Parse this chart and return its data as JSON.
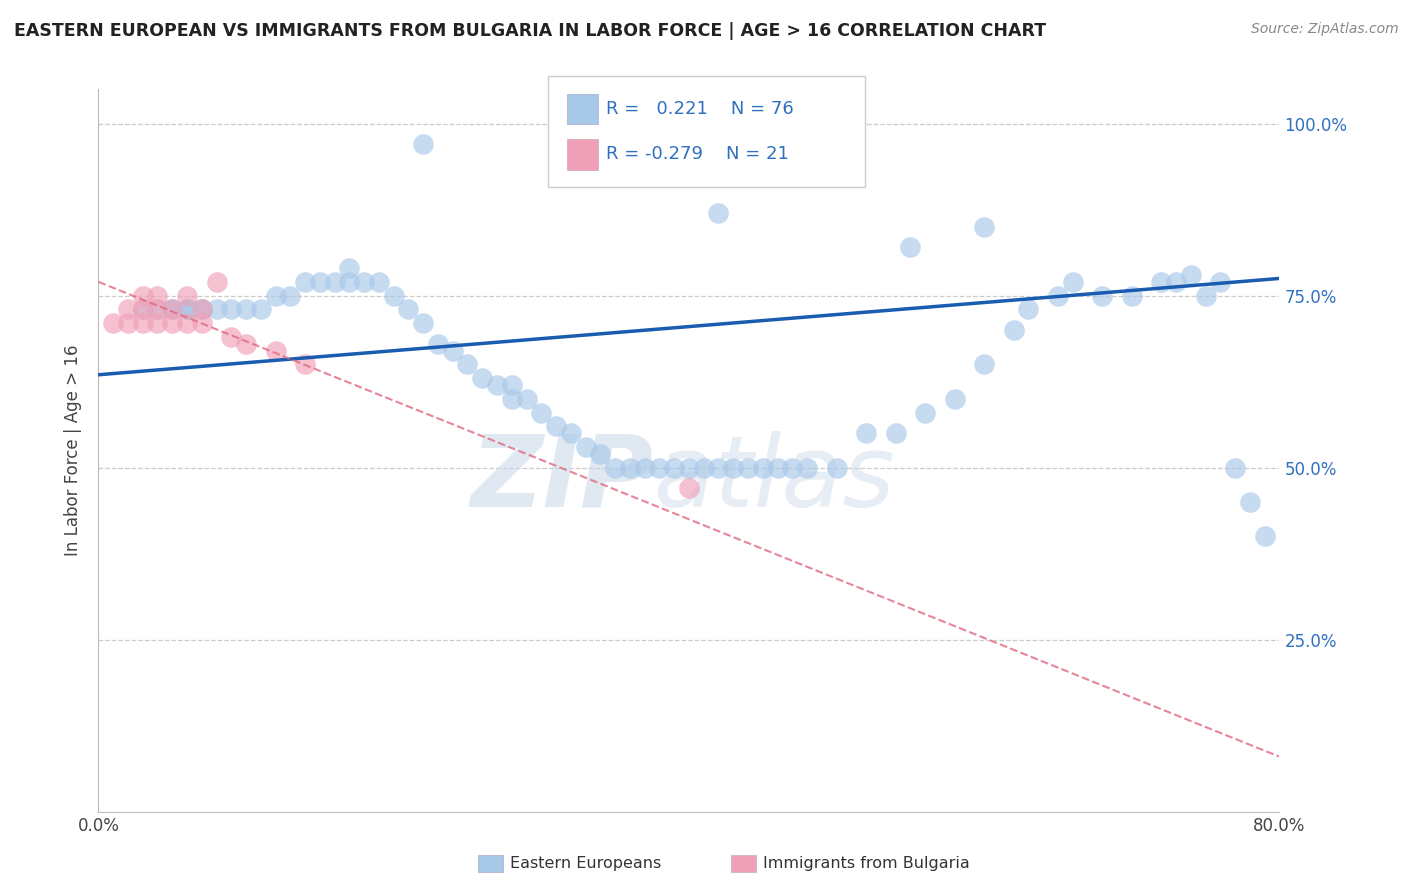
{
  "title": "EASTERN EUROPEAN VS IMMIGRANTS FROM BULGARIA IN LABOR FORCE | AGE > 16 CORRELATION CHART",
  "source": "Source: ZipAtlas.com",
  "ylabel": "In Labor Force | Age > 16",
  "xmin": 0.0,
  "xmax": 0.8,
  "ymin": 0.0,
  "ymax": 1.05,
  "xtick_labels": [
    "0.0%",
    "80.0%"
  ],
  "ytick_labels": [
    "100.0%",
    "75.0%",
    "50.0%",
    "25.0%"
  ],
  "ytick_values": [
    1.0,
    0.75,
    0.5,
    0.25
  ],
  "watermark": "ZIPatlas",
  "legend1_label": "Eastern Europeans",
  "legend1_color": "#a8c8e8",
  "legend2_label": "Immigrants from Bulgaria",
  "legend2_color": "#f0a0b8",
  "R1": 0.221,
  "N1": 76,
  "R2": -0.279,
  "N2": 21,
  "blue_line_color": "#1a5cb0",
  "pink_line_color": "#e06880",
  "blue_scatter_color": "#a8c8e8",
  "pink_scatter_color": "#f0a0b8",
  "blue_scatter_x": [
    0.03,
    0.04,
    0.05,
    0.05,
    0.06,
    0.06,
    0.06,
    0.07,
    0.07,
    0.08,
    0.09,
    0.1,
    0.11,
    0.12,
    0.13,
    0.14,
    0.15,
    0.16,
    0.17,
    0.17,
    0.18,
    0.19,
    0.2,
    0.21,
    0.22,
    0.23,
    0.24,
    0.25,
    0.26,
    0.27,
    0.28,
    0.28,
    0.29,
    0.3,
    0.31,
    0.32,
    0.33,
    0.34,
    0.35,
    0.36,
    0.37,
    0.38,
    0.39,
    0.4,
    0.41,
    0.42,
    0.43,
    0.44,
    0.45,
    0.46,
    0.47,
    0.48,
    0.5,
    0.52,
    0.54,
    0.56,
    0.58,
    0.6,
    0.62,
    0.63,
    0.65,
    0.66,
    0.68,
    0.7,
    0.72,
    0.73,
    0.74,
    0.75,
    0.76,
    0.77,
    0.78,
    0.79,
    0.42,
    0.55,
    0.6,
    0.22
  ],
  "blue_scatter_y": [
    0.73,
    0.73,
    0.73,
    0.73,
    0.73,
    0.73,
    0.73,
    0.73,
    0.73,
    0.73,
    0.73,
    0.73,
    0.73,
    0.75,
    0.75,
    0.77,
    0.77,
    0.77,
    0.77,
    0.79,
    0.77,
    0.77,
    0.75,
    0.73,
    0.71,
    0.68,
    0.67,
    0.65,
    0.63,
    0.62,
    0.6,
    0.62,
    0.6,
    0.58,
    0.56,
    0.55,
    0.53,
    0.52,
    0.5,
    0.5,
    0.5,
    0.5,
    0.5,
    0.5,
    0.5,
    0.5,
    0.5,
    0.5,
    0.5,
    0.5,
    0.5,
    0.5,
    0.5,
    0.55,
    0.55,
    0.58,
    0.6,
    0.65,
    0.7,
    0.73,
    0.75,
    0.77,
    0.75,
    0.75,
    0.77,
    0.77,
    0.78,
    0.75,
    0.77,
    0.5,
    0.45,
    0.4,
    0.87,
    0.82,
    0.85,
    0.97
  ],
  "pink_scatter_x": [
    0.01,
    0.02,
    0.02,
    0.03,
    0.03,
    0.03,
    0.04,
    0.04,
    0.04,
    0.05,
    0.05,
    0.06,
    0.06,
    0.07,
    0.07,
    0.08,
    0.09,
    0.1,
    0.12,
    0.14,
    0.4
  ],
  "pink_scatter_y": [
    0.71,
    0.71,
    0.73,
    0.71,
    0.73,
    0.75,
    0.71,
    0.73,
    0.75,
    0.71,
    0.73,
    0.71,
    0.75,
    0.71,
    0.73,
    0.77,
    0.69,
    0.68,
    0.67,
    0.65,
    0.47
  ],
  "blue_line_x0": 0.0,
  "blue_line_y0": 0.635,
  "blue_line_x1": 0.8,
  "blue_line_y1": 0.775,
  "pink_line_x0": 0.0,
  "pink_line_y0": 0.77,
  "pink_line_x1": 0.8,
  "pink_line_y1": 0.08
}
